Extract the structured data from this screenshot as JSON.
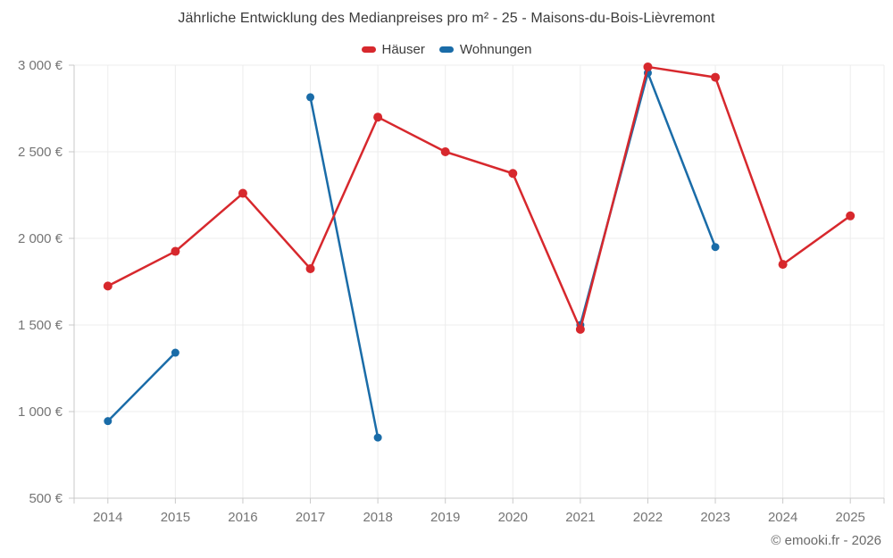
{
  "footer": {
    "credit": "© emooki.fr - 2026"
  },
  "chart_data": {
    "type": "line",
    "title": "Jährliche Entwicklung des Medianpreises pro m² - 25 - Maisons-du-Bois-Lièvremont",
    "xlabel": "",
    "ylabel": "",
    "currency": "€",
    "grid": true,
    "legend_position": "top",
    "categories": [
      "2014",
      "2015",
      "2016",
      "2017",
      "2018",
      "2019",
      "2020",
      "2021",
      "2022",
      "2023",
      "2024",
      "2025"
    ],
    "series": [
      {
        "name": "Häuser",
        "color": "#d7282d",
        "point_radius": 5,
        "values": [
          1725,
          1925,
          2260,
          1825,
          2700,
          2500,
          2375,
          1475,
          2990,
          2930,
          1850,
          2130
        ]
      },
      {
        "name": "Wohnungen",
        "color": "#1a6ca8",
        "point_radius": 4.5,
        "values": [
          945,
          1340,
          null,
          2815,
          850,
          null,
          null,
          1500,
          2955,
          1950,
          null,
          null
        ]
      }
    ],
    "ylim": [
      500,
      3000
    ],
    "y_ticks": [
      {
        "value": 500,
        "label": "500 €"
      },
      {
        "value": 1000,
        "label": "1 000 €"
      },
      {
        "value": 1500,
        "label": "1 500 €"
      },
      {
        "value": 2000,
        "label": "2 000 €"
      },
      {
        "value": 2500,
        "label": "2 500 €"
      },
      {
        "value": 3000,
        "label": "3 000 €"
      }
    ],
    "colors": {
      "grid": "#ececec",
      "axis": "#c9c9c9",
      "tick_text": "#757575",
      "title_text": "#3b3b3b"
    }
  }
}
